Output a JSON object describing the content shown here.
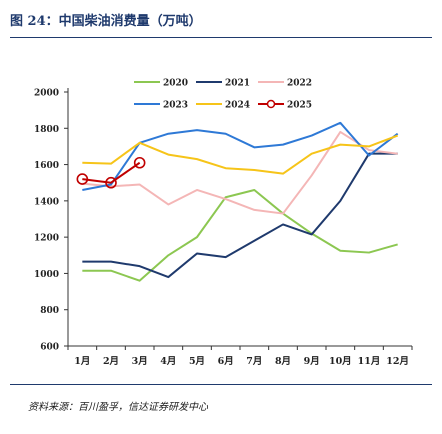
{
  "figure": {
    "title": "图 24：中国柴油消费量（万吨）",
    "source": "资料来源：百川盈孚，信达证券研发中心"
  },
  "chart_data": {
    "type": "line",
    "title": "图 24：中国柴油消费量（万吨）",
    "xlabel": "",
    "ylabel": "",
    "categories": [
      "1月",
      "2月",
      "3月",
      "4月",
      "5月",
      "6月",
      "7月",
      "8月",
      "9月",
      "10月",
      "11月",
      "12月"
    ],
    "ylim": [
      600,
      2000
    ],
    "yticks": [
      600,
      800,
      1000,
      1200,
      1400,
      1600,
      1800,
      2000
    ],
    "grid": false,
    "legend_position": "top",
    "series": [
      {
        "name": "2020",
        "color": "#8cc751",
        "marker": false,
        "values": [
          1015,
          1015,
          960,
          1100,
          1200,
          1420,
          1460,
          1330,
          1220,
          1125,
          1115,
          1160
        ]
      },
      {
        "name": "2021",
        "color": "#1f3a6d",
        "marker": false,
        "values": [
          1065,
          1065,
          1040,
          980,
          1110,
          1090,
          1180,
          1270,
          1215,
          1400,
          1660,
          1660
        ]
      },
      {
        "name": "2022",
        "color": "#f4b6b6",
        "marker": false,
        "values": [
          1495,
          1480,
          1490,
          1380,
          1460,
          1410,
          1350,
          1330,
          1540,
          1780,
          1680,
          1660
        ]
      },
      {
        "name": "2023",
        "color": "#2e79d6",
        "marker": false,
        "values": [
          1460,
          1490,
          1720,
          1770,
          1790,
          1770,
          1695,
          1710,
          1760,
          1830,
          1650,
          1770
        ]
      },
      {
        "name": "2024",
        "color": "#f6c419",
        "marker": false,
        "values": [
          1610,
          1605,
          1720,
          1655,
          1630,
          1580,
          1570,
          1550,
          1660,
          1710,
          1700,
          1760
        ]
      },
      {
        "name": "2025",
        "color": "#c00000",
        "marker": true,
        "values": [
          1520,
          1500,
          1610,
          null,
          null,
          null,
          null,
          null,
          null,
          null,
          null,
          null
        ]
      }
    ]
  }
}
